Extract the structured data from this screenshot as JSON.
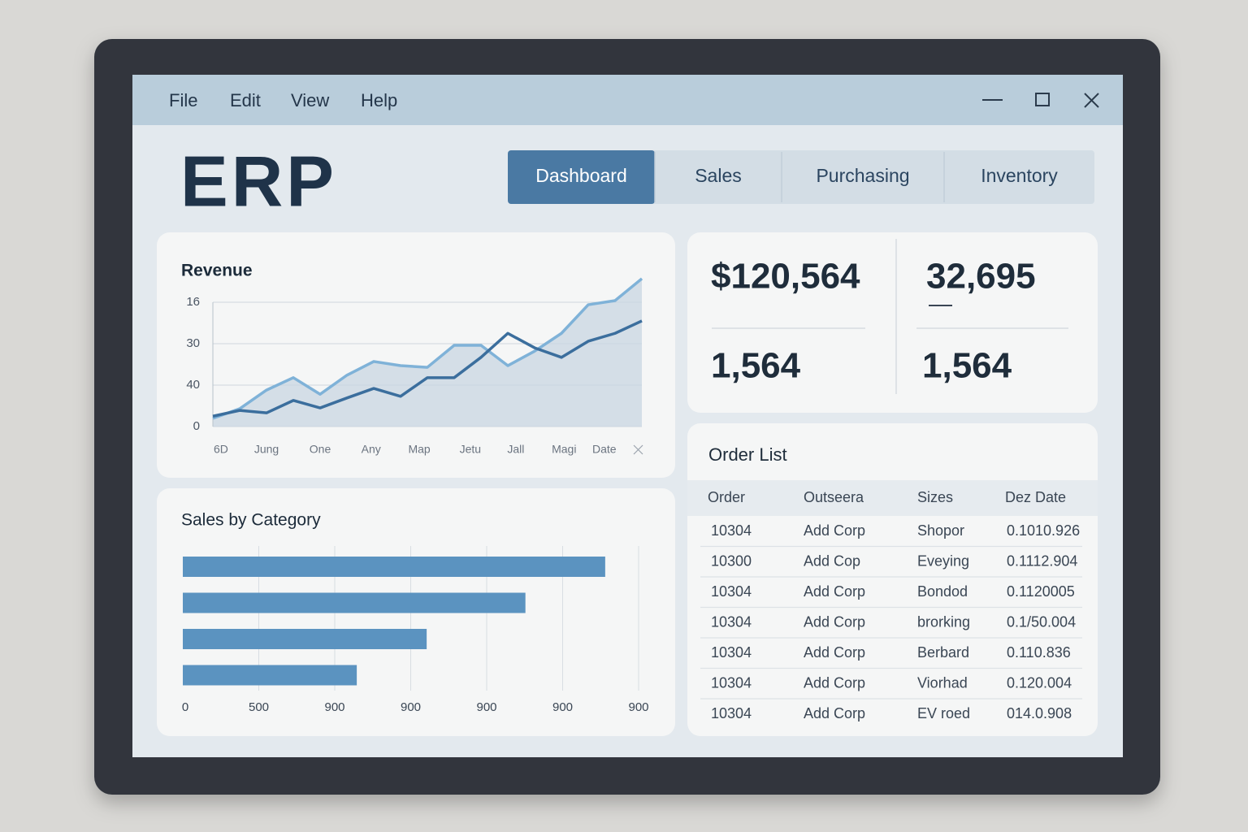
{
  "menu": [
    "File",
    "Edit",
    "View",
    "Help"
  ],
  "logo": "ERP",
  "tabs": [
    "Dashboard",
    "Sales",
    "Purchasing",
    "Inventory"
  ],
  "active_tab": 0,
  "chart_data": [
    {
      "type": "line",
      "title": "Revenue",
      "x": [
        0,
        1,
        2,
        3,
        4,
        5,
        6,
        7,
        8,
        9,
        10,
        11,
        12,
        13,
        14,
        15,
        16
      ],
      "xlim": [
        0,
        16
      ],
      "xticks": [
        {
          "value": 0.3,
          "label": "6D"
        },
        {
          "value": 2,
          "label": "Jung"
        },
        {
          "value": 4,
          "label": "One"
        },
        {
          "value": 5.9,
          "label": "Any"
        },
        {
          "value": 7.7,
          "label": "Map"
        },
        {
          "value": 9.6,
          "label": "Jetu"
        },
        {
          "value": 11.3,
          "label": "Jall"
        },
        {
          "value": 13.1,
          "label": "Magi"
        },
        {
          "value": 14.6,
          "label": "Date"
        }
      ],
      "ylim": [
        0,
        3
      ],
      "yticks": [
        0,
        {
          "value": 1,
          "label": "40"
        },
        {
          "value": 2,
          "label": "30"
        },
        {
          "value": 3,
          "label": "16"
        }
      ],
      "grid": true,
      "area": true,
      "series": [
        {
          "color": "#7fb2d8",
          "values": [
            0.2,
            0.43,
            0.88,
            1.18,
            0.78,
            1.24,
            1.57,
            1.47,
            1.43,
            1.96,
            1.96,
            1.47,
            1.82,
            2.25,
            2.94,
            3.04,
            3.57
          ]
        },
        {
          "color": "#3b6e9d",
          "values": [
            0.25,
            0.39,
            0.33,
            0.63,
            0.45,
            0.69,
            0.92,
            0.73,
            1.18,
            1.18,
            1.67,
            2.25,
            1.9,
            1.67,
            2.06,
            2.25,
            2.55
          ]
        }
      ]
    },
    {
      "type": "hbar",
      "title": "Sales by Category",
      "categories": [
        null,
        null,
        null,
        null
      ],
      "values": [
        5.56,
        4.51,
        3.21,
        2.29
      ],
      "color": "#5b93c0",
      "xlim": [
        0,
        6
      ],
      "xticks": [
        0,
        {
          "value": 1,
          "label": "500"
        },
        {
          "value": 2,
          "label": "900"
        },
        {
          "value": 3,
          "label": "900"
        },
        {
          "value": 4,
          "label": "900"
        },
        {
          "value": 5,
          "label": "900"
        },
        {
          "value": 6,
          "label": "900"
        }
      ],
      "grid": true
    }
  ],
  "kpis": [
    "$120,564",
    "32,695",
    "1,564",
    "1,564"
  ],
  "orders": {
    "title": "Order List",
    "columns": [
      "Order",
      "Outseera",
      "Sizes",
      "Dez Date"
    ],
    "rows": [
      [
        "10304",
        "Add Corp",
        "Shopor",
        "0.1010.926"
      ],
      [
        "10300",
        "Add Cop",
        "Eveying",
        "0.1112.904"
      ],
      [
        "10304",
        "Add Corp",
        "Bondod",
        "0.1120005"
      ],
      [
        "10304",
        "Add Corp",
        "brorking",
        "0.1/50.004"
      ],
      [
        "10304",
        "Add Corp",
        "Berbard",
        "0.110.836"
      ],
      [
        "10304",
        "Add Corp",
        "Viorhad",
        "0.120.004"
      ],
      [
        "10304",
        "Add Corp",
        "EV roed",
        "014.0.908"
      ]
    ]
  }
}
